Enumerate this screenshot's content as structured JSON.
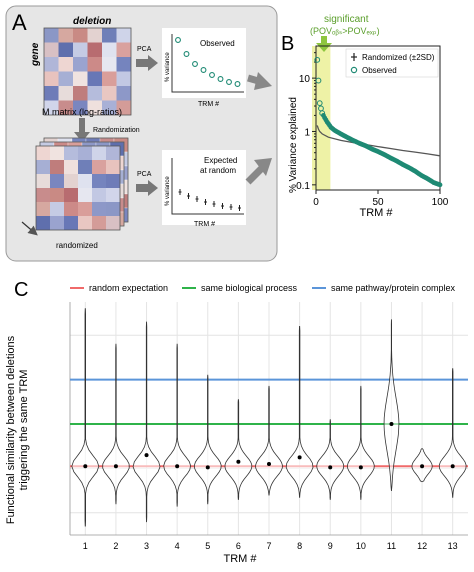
{
  "panel_a": {
    "letter": "A",
    "matrix_top_label": "deletion",
    "matrix_side_label": "gene",
    "matrix_caption": "M matrix (log-ratios)",
    "randomization_label": "Randomization",
    "randomized_caption": "randomized",
    "pca_label_1": "PCA",
    "pca_label_2": "PCA",
    "observed_title": "Observed",
    "expected_title_1": "Expected",
    "expected_title_2": "at random",
    "mini_ylabel_1": "% variance",
    "mini_ylabel_2": "% variance",
    "mini_xlabel_1": "TRM #",
    "mini_xlabel_2": "TRM #",
    "matrix_colors": [
      "#8b97c6",
      "#d6a8a0",
      "#c98a84",
      "#e3d2d0",
      "#6f7fb8",
      "#cfd4e9",
      "#d8c0c4",
      "#5f6fad",
      "#c5cbe4",
      "#b86c70",
      "#dfe2ef",
      "#d9a19e",
      "#b0b6d8",
      "#eed6d2",
      "#9aa3cf",
      "#cc8a88",
      "#e6e7f0",
      "#7584be",
      "#e8c3be",
      "#a6afd4",
      "#f0e3e0",
      "#6877b6",
      "#d99e9a",
      "#c2c8e3",
      "#6e7cb8",
      "#e7dcda",
      "#bf7d7c",
      "#b5bcdc",
      "#e9c7c2",
      "#8d98c8",
      "#d1d5ea",
      "#c88c8c",
      "#7a86bf",
      "#efe0dd",
      "#a8b0d6",
      "#d49c98"
    ]
  },
  "panel_b": {
    "letter": "B",
    "significant_label": "significant",
    "pov_label": "(POVₒᵦₛ>POVₑₓₚ)",
    "legend_randomized": "Randomized  (±2SD)",
    "legend_observed": "Observed",
    "ylabel": "%  Variance  explained",
    "xlabel": "TRM #",
    "y_ticks": [
      "10",
      "1",
      "0.1"
    ],
    "x_ticks": [
      "0",
      "50",
      "100"
    ],
    "colors": {
      "observed": "#1f8a74",
      "randomized": "#555555",
      "highlight": "#eef2a6",
      "arrow": "#8ec63f"
    }
  },
  "panel_c": {
    "letter": "C",
    "legend": [
      {
        "label": "random expectation",
        "color": "#f06a6a"
      },
      {
        "label": "same biological process",
        "color": "#2fb34a"
      },
      {
        "label": "same pathway/protein complex",
        "color": "#5b95d9"
      }
    ],
    "ylabel_1": "Functional similarity between deletions",
    "ylabel_2": "triggering the same TRM",
    "xlabel": "TRM #"
  },
  "chart_data": [
    {
      "type": "scatter",
      "panel": "B",
      "xlabel": "TRM #",
      "ylabel": "% Variance explained",
      "xlim": [
        0,
        100
      ],
      "ylim": [
        0.08,
        40
      ],
      "yscale": "log",
      "legend_placement": "top-right",
      "grid": false,
      "significant_region_x": [
        0,
        10
      ],
      "series": [
        {
          "name": "Observed",
          "x": [
            1,
            2,
            3,
            4,
            5,
            6,
            7,
            8,
            9,
            10,
            12,
            15,
            20,
            25,
            30,
            35,
            40,
            45,
            50,
            55,
            60,
            65,
            70,
            75,
            80,
            85,
            90,
            95,
            100
          ],
          "values": [
            22,
            9,
            3.4,
            2.7,
            2.2,
            2.0,
            1.8,
            1.65,
            1.5,
            1.4,
            1.2,
            1.05,
            0.9,
            0.78,
            0.68,
            0.6,
            0.54,
            0.47,
            0.42,
            0.37,
            0.32,
            0.28,
            0.24,
            0.21,
            0.18,
            0.15,
            0.13,
            0.11,
            0.1
          ]
        },
        {
          "name": "Randomized  (±2SD)",
          "x": [
            1,
            2,
            3,
            4,
            5,
            10,
            20,
            30,
            40,
            50,
            60,
            70,
            80,
            90,
            100
          ],
          "values": [
            1.3,
            1.1,
            1.0,
            0.95,
            0.9,
            0.78,
            0.68,
            0.62,
            0.57,
            0.52,
            0.48,
            0.44,
            0.41,
            0.38,
            0.35
          ]
        }
      ]
    },
    {
      "type": "violin",
      "panel": "C",
      "xlabel": "TRM #",
      "ylabel": "Functional similarity between deletions triggering the same TRM",
      "categories": [
        "1",
        "2",
        "3",
        "4",
        "5",
        "6",
        "7",
        "8",
        "9",
        "10",
        "11",
        "12",
        "13"
      ],
      "ylim": [
        -0.3,
        0.75
      ],
      "ymin": [
        -0.26,
        -0.16,
        -0.24,
        -0.17,
        -0.16,
        -0.14,
        -0.12,
        -0.13,
        -0.14,
        -0.14,
        -0.1,
        -0.06,
        -0.13
      ],
      "ymax": [
        0.72,
        0.56,
        0.66,
        0.56,
        0.42,
        0.31,
        0.37,
        0.64,
        0.22,
        0.37,
        0.67,
        0.09,
        0.45
      ],
      "medians": [
        0.01,
        0.01,
        0.06,
        0.01,
        0.005,
        0.03,
        0.02,
        0.05,
        0.005,
        0.005,
        0.2,
        0.01,
        0.01
      ],
      "reference_lines": [
        {
          "name": "random expectation",
          "y": 0.01
        },
        {
          "name": "same biological process",
          "y": 0.2
        },
        {
          "name": "same pathway/protein complex",
          "y": 0.4
        }
      ],
      "grid": true,
      "legend_placement": "top"
    }
  ]
}
